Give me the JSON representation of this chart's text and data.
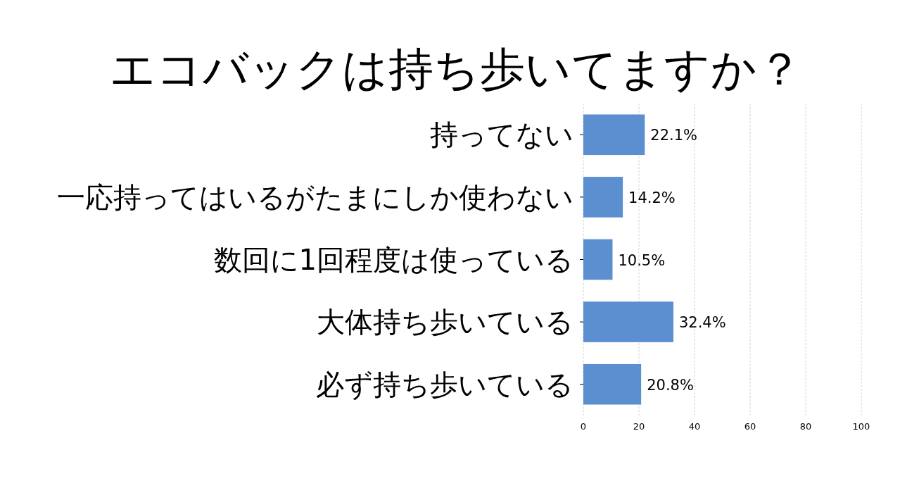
{
  "chart_data": {
    "type": "bar",
    "orientation": "horizontal",
    "title": "エコバックは持ち歩いてますか？",
    "categories": [
      "持ってない",
      "一応持ってはいるがたまにしか使わない",
      "数回に1回程度は使っている",
      "大体持ち歩いている",
      "必ず持ち歩いている"
    ],
    "values": [
      22.1,
      14.2,
      10.5,
      32.4,
      20.8
    ],
    "value_labels": [
      "22.1%",
      "14.2%",
      "10.5%",
      "32.4%",
      "20.8%"
    ],
    "color": "#5b8fd0",
    "xlim": [
      0,
      100
    ],
    "xticks": [
      0,
      20,
      40,
      60,
      80,
      100
    ],
    "grid": "x"
  }
}
